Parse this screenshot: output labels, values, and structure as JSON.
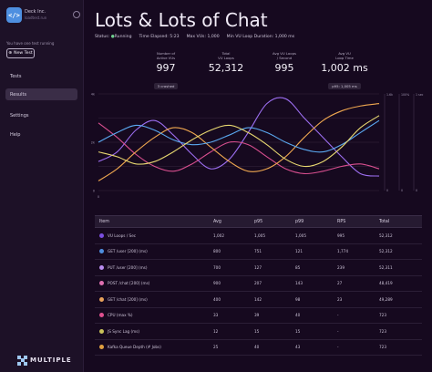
{
  "org": {
    "icon": "</>",
    "name": "Deck Inc.",
    "sub": "loadtest.run"
  },
  "sidebar": {
    "running_text": "You have one test running",
    "new_test_label": "New Test",
    "items": [
      {
        "label": "Tests"
      },
      {
        "label": "Results"
      },
      {
        "label": "Settings"
      },
      {
        "label": "Help"
      }
    ],
    "logo_text": "MULTIPLE"
  },
  "page": {
    "title": "Lots & Lots of Chat"
  },
  "status": {
    "status_label": "Status:",
    "status_value": "Running",
    "elapsed_label": "Time Elapsed:",
    "elapsed_value": "5:23",
    "max_vus_label": "Max VUs:",
    "max_vus_value": "1,000",
    "min_loop_label": "Min VU Loop Duration:",
    "min_loop_value": "1,000 ms"
  },
  "stats": [
    {
      "label": "Number of\nActive VUs",
      "value": "997",
      "badge": "3 crashed"
    },
    {
      "label": "Total\nVU Loops",
      "value": "52,312",
      "badge": ""
    },
    {
      "label": "Avg VU Loops\n/ Second",
      "value": "995",
      "badge": ""
    },
    {
      "label": "Avg VU\nLoop Time",
      "value": "1,002 ms",
      "badge": "p95: 1,005 ms"
    }
  ],
  "chart_data": {
    "type": "line",
    "y_axis_ticks": [
      "4k",
      "2k",
      "0"
    ],
    "x_axis_ticks": [
      "0",
      "",
      "",
      "",
      "",
      "",
      "",
      "",
      "",
      "",
      "",
      "",
      "",
      "",
      "",
      ""
    ],
    "series": [
      {
        "color": "#9c6ef0",
        "values": [
          1.2,
          1.6,
          2.5,
          2.9,
          2.3,
          1.5,
          0.9,
          1.3,
          2.4,
          3.6,
          3.8,
          3.0,
          2.2,
          1.4,
          0.7,
          0.6
        ]
      },
      {
        "color": "#d94f8f",
        "values": [
          2.8,
          2.2,
          1.5,
          1.0,
          0.8,
          1.1,
          1.6,
          2.0,
          1.9,
          1.4,
          0.9,
          0.7,
          0.8,
          1.0,
          1.1,
          0.9
        ]
      },
      {
        "color": "#f0a850",
        "values": [
          0.4,
          0.9,
          1.6,
          2.2,
          2.6,
          2.4,
          1.8,
          1.2,
          0.8,
          0.9,
          1.4,
          2.2,
          2.9,
          3.3,
          3.5,
          3.6
        ]
      },
      {
        "color": "#5aa8f0",
        "values": [
          2.0,
          2.4,
          2.7,
          2.5,
          2.1,
          1.9,
          2.0,
          2.3,
          2.6,
          2.4,
          2.0,
          1.7,
          1.6,
          1.9,
          2.4,
          2.9
        ]
      },
      {
        "color": "#e8d870",
        "values": [
          1.6,
          1.4,
          1.1,
          1.2,
          1.6,
          2.1,
          2.5,
          2.7,
          2.4,
          1.9,
          1.3,
          1.0,
          1.2,
          1.8,
          2.6,
          3.1
        ]
      }
    ],
    "right_axes": [
      {
        "top": "1.6k",
        "bottom": "0"
      },
      {
        "top": "100%",
        "bottom": "0"
      },
      {
        "top": "1 sec",
        "bottom": "0"
      }
    ]
  },
  "table": {
    "headers": [
      "Item",
      "Avg",
      "p95",
      "p99",
      "RPS",
      "Total"
    ],
    "rows": [
      {
        "color": "#7b4ee0",
        "item": "VU Loops / Sec",
        "avg": "1,002",
        "p95": "1,005",
        "p99": "1,005",
        "rps": "995",
        "total": "52,312"
      },
      {
        "color": "#4e8fe0",
        "item": "GET /user [200] (ms)",
        "avg": "800",
        "p95": "751",
        "p99": "121",
        "rps": "1,774",
        "total": "52,312"
      },
      {
        "color": "#b98cf0",
        "item": "PUT /user [200] (ms)",
        "avg": "700",
        "p95": "127",
        "p99": "85",
        "rps": "239",
        "total": "52,311"
      },
      {
        "color": "#e06fb0",
        "item": "POST /chat [200] (ms)",
        "avg": "900",
        "p95": "207",
        "p99": "143",
        "rps": "27",
        "total": "48,419"
      },
      {
        "color": "#e8a25a",
        "item": "GET /chat [200] (ms)",
        "avg": "400",
        "p95": "142",
        "p99": "98",
        "rps": "23",
        "total": "49,289"
      },
      {
        "color": "#e0508f",
        "item": "CPU (max %)",
        "avg": "33",
        "p95": "39",
        "p99": "40",
        "rps": "-",
        "total": "723"
      },
      {
        "color": "#c9c25a",
        "item": "JS Sync Lag (ms)",
        "avg": "12",
        "p95": "15",
        "p99": "15",
        "rps": "-",
        "total": "723"
      },
      {
        "color": "#e0a040",
        "item": "Kafka Queue Depth (# Jobs)",
        "avg": "25",
        "p95": "40",
        "p99": "43",
        "rps": "-",
        "total": "723"
      }
    ]
  }
}
